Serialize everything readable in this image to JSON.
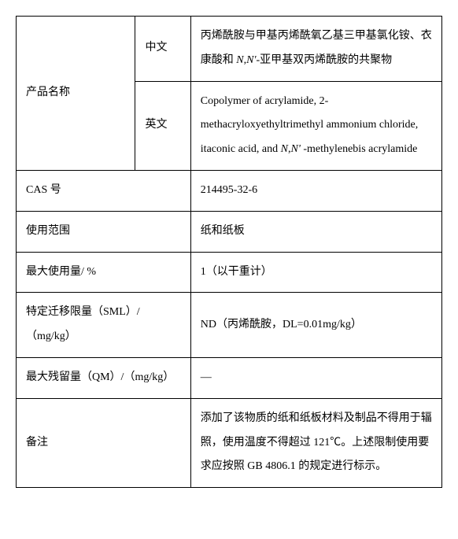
{
  "rows": {
    "productName": {
      "label": "产品名称",
      "chinese": {
        "lang": "中文",
        "value_part1": "丙烯酰胺与甲基丙烯酰氧乙基三甲基氯化铵、衣康酸和 ",
        "value_italic1": "N",
        "value_comma": ",",
        "value_italic2": "N'",
        "value_part2": "-亚甲基双丙烯酰胺的共聚物"
      },
      "english": {
        "lang": "英文",
        "value_part1": "Copolymer of acrylamide, 2-methacryloxyethyltrimethyl ammonium chloride, itaconic acid, and ",
        "value_italic1": "N",
        "value_comma": ",",
        "value_italic2": "N'",
        "value_part2": " -methylenebis acrylamide"
      }
    },
    "cas": {
      "label": "CAS 号",
      "value": "214495-32-6"
    },
    "scope": {
      "label": "使用范围",
      "value": "纸和纸板"
    },
    "maxUsage": {
      "label": "最大使用量/ %",
      "value": "1（以干重计）"
    },
    "sml": {
      "label": "特定迁移限量（SML）/（mg/kg）",
      "value": "ND（丙烯酰胺，DL=0.01mg/kg）"
    },
    "qm": {
      "label": "最大残留量（QM）/（mg/kg）",
      "value": "—"
    },
    "notes": {
      "label": "备注",
      "value": "添加了该物质的纸和纸板材料及制品不得用于辐照，使用温度不得超过 121℃。上述限制使用要求应按照 GB 4806.1 的规定进行标示。"
    }
  }
}
